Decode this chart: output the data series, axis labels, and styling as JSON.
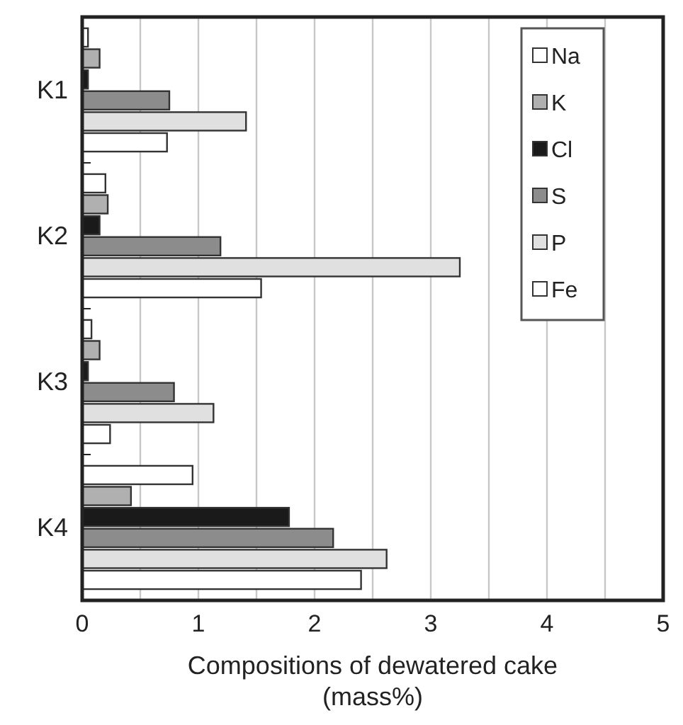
{
  "chart_data": {
    "type": "bar",
    "orientation": "horizontal",
    "categories": [
      "K1",
      "K2",
      "K3",
      "K4"
    ],
    "series": [
      {
        "name": "Na",
        "color": "#ffffff",
        "values": [
          0.05,
          0.2,
          0.08,
          0.95
        ]
      },
      {
        "name": "K",
        "color": "#b0b0b0",
        "values": [
          0.15,
          0.22,
          0.15,
          0.42
        ]
      },
      {
        "name": "Cl",
        "color": "#1a1a1a",
        "values": [
          0.05,
          0.15,
          0.05,
          1.78
        ]
      },
      {
        "name": "S",
        "color": "#8c8c8c",
        "values": [
          0.75,
          1.19,
          0.79,
          2.16
        ]
      },
      {
        "name": "P",
        "color": "#e0e0e0",
        "values": [
          1.41,
          3.25,
          1.13,
          2.62
        ]
      },
      {
        "name": "Fe",
        "color": "#ffffff",
        "values": [
          0.73,
          1.54,
          0.24,
          2.4
        ]
      }
    ],
    "xlabel": "Compositions of dewatered cake\n(mass%)",
    "xlim": [
      0,
      5
    ],
    "xticks": [
      0,
      {
        "value": 0.5,
        "label": null
      },
      1,
      {
        "value": 1.5,
        "label": null
      },
      2,
      {
        "value": 2.5,
        "label": null
      },
      3,
      {
        "value": 3.5,
        "label": null
      },
      4,
      {
        "value": 4.5,
        "label": null
      },
      5
    ],
    "grid": "x",
    "legend": "top right"
  }
}
